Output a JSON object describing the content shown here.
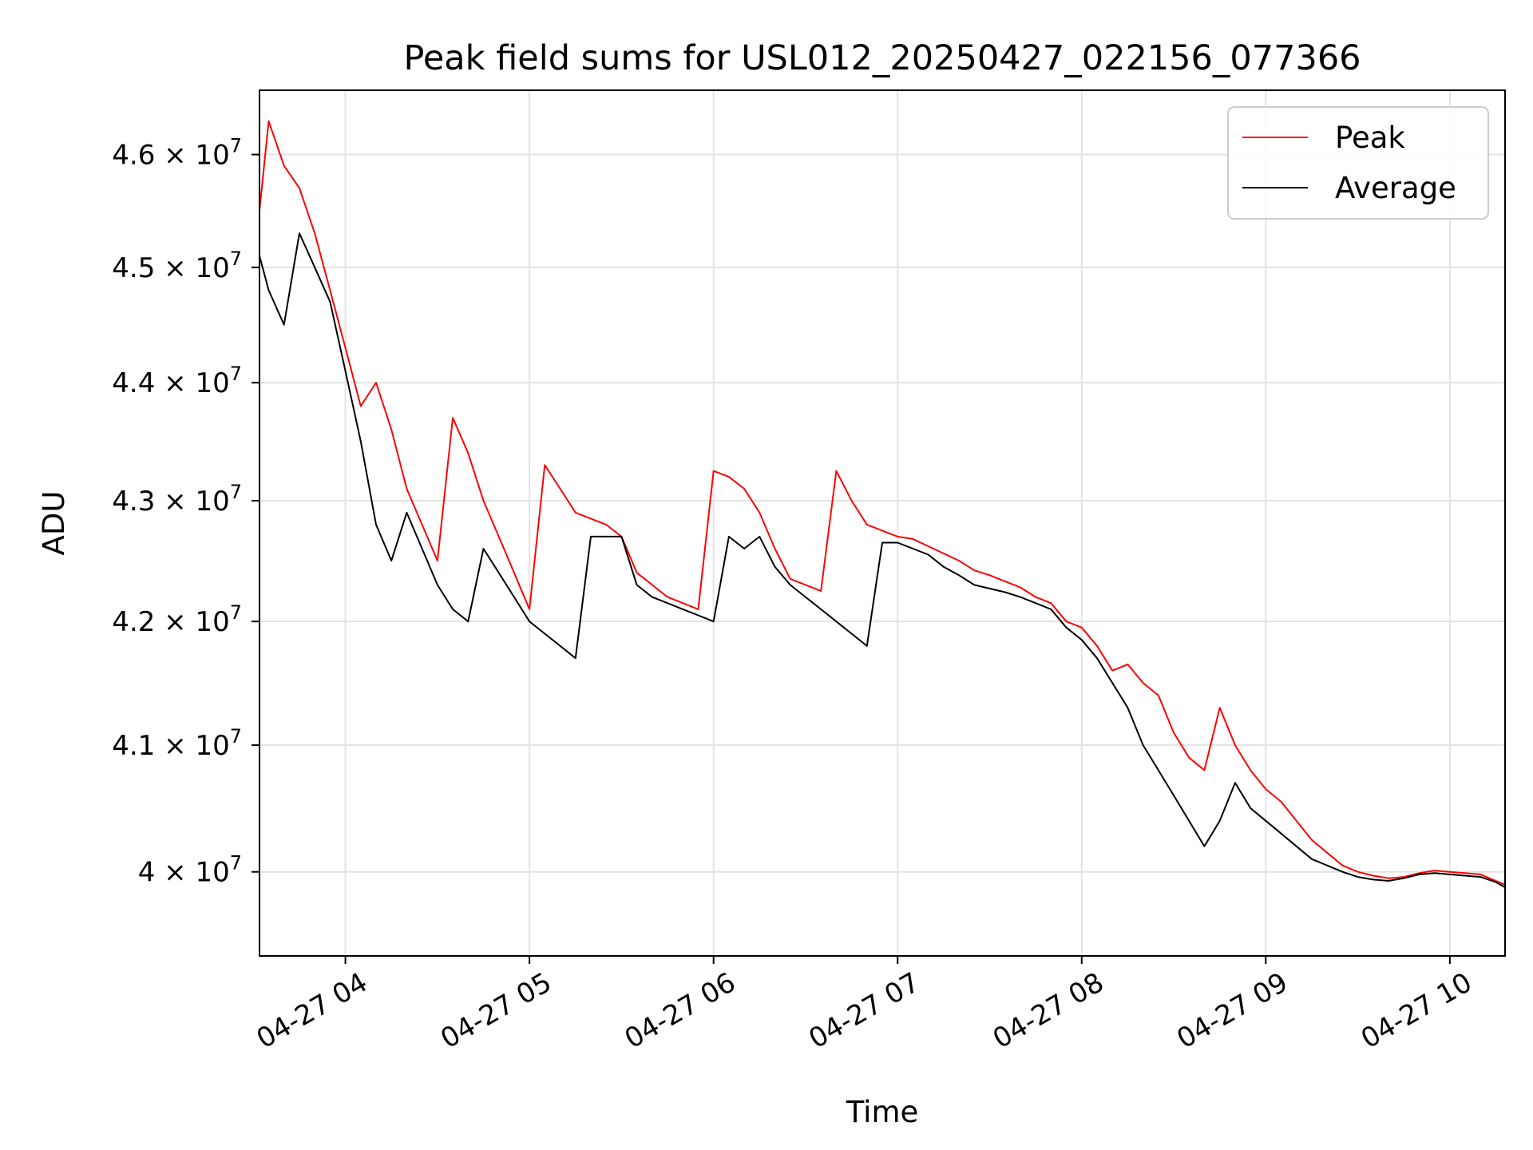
{
  "chart_data": {
    "type": "line",
    "title": "Peak field sums for USL012_20250427_022156_077366",
    "xlabel": "Time",
    "ylabel": "ADU",
    "y_scale": "log",
    "xlim": [
      "2025-04-27 03:32",
      "2025-04-27 10:18"
    ],
    "ylim": [
      39350000,
      46580000
    ],
    "grid": true,
    "legend_position": "top-right",
    "x_ticks": [
      {
        "value": "2025-04-27 04:00",
        "label": "04-27 04"
      },
      {
        "value": "2025-04-27 05:00",
        "label": "04-27 05"
      },
      {
        "value": "2025-04-27 06:00",
        "label": "04-27 06"
      },
      {
        "value": "2025-04-27 07:00",
        "label": "04-27 07"
      },
      {
        "value": "2025-04-27 08:00",
        "label": "04-27 08"
      },
      {
        "value": "2025-04-27 09:00",
        "label": "04-27 09"
      },
      {
        "value": "2025-04-27 10:00",
        "label": "04-27 10"
      }
    ],
    "y_ticks": [
      {
        "value": 40000000,
        "mantissa": "4",
        "exp": "7"
      },
      {
        "value": 41000000,
        "mantissa": "4.1",
        "exp": "7"
      },
      {
        "value": 42000000,
        "mantissa": "4.2",
        "exp": "7"
      },
      {
        "value": 43000000,
        "mantissa": "4.3",
        "exp": "7"
      },
      {
        "value": 44000000,
        "mantissa": "4.4",
        "exp": "7"
      },
      {
        "value": 45000000,
        "mantissa": "4.5",
        "exp": "7"
      },
      {
        "value": 46000000,
        "mantissa": "4.6",
        "exp": "7"
      }
    ],
    "series": [
      {
        "name": "Peak",
        "color": "#ff0000",
        "x": [
          "2025-04-27 03:32",
          "2025-04-27 03:35",
          "2025-04-27 03:40",
          "2025-04-27 03:45",
          "2025-04-27 03:50",
          "2025-04-27 03:55",
          "2025-04-27 04:00",
          "2025-04-27 04:05",
          "2025-04-27 04:10",
          "2025-04-27 04:15",
          "2025-04-27 04:20",
          "2025-04-27 04:25",
          "2025-04-27 04:30",
          "2025-04-27 04:35",
          "2025-04-27 04:40",
          "2025-04-27 04:45",
          "2025-04-27 04:50",
          "2025-04-27 04:55",
          "2025-04-27 05:00",
          "2025-04-27 05:05",
          "2025-04-27 05:10",
          "2025-04-27 05:15",
          "2025-04-27 05:20",
          "2025-04-27 05:25",
          "2025-04-27 05:30",
          "2025-04-27 05:35",
          "2025-04-27 05:40",
          "2025-04-27 05:45",
          "2025-04-27 05:50",
          "2025-04-27 05:55",
          "2025-04-27 06:00",
          "2025-04-27 06:05",
          "2025-04-27 06:10",
          "2025-04-27 06:15",
          "2025-04-27 06:20",
          "2025-04-27 06:25",
          "2025-04-27 06:30",
          "2025-04-27 06:35",
          "2025-04-27 06:40",
          "2025-04-27 06:45",
          "2025-04-27 06:50",
          "2025-04-27 06:55",
          "2025-04-27 07:00",
          "2025-04-27 07:05",
          "2025-04-27 07:10",
          "2025-04-27 07:15",
          "2025-04-27 07:20",
          "2025-04-27 07:25",
          "2025-04-27 07:30",
          "2025-04-27 07:35",
          "2025-04-27 07:40",
          "2025-04-27 07:45",
          "2025-04-27 07:50",
          "2025-04-27 07:55",
          "2025-04-27 08:00",
          "2025-04-27 08:05",
          "2025-04-27 08:10",
          "2025-04-27 08:15",
          "2025-04-27 08:20",
          "2025-04-27 08:25",
          "2025-04-27 08:30",
          "2025-04-27 08:35",
          "2025-04-27 08:40",
          "2025-04-27 08:45",
          "2025-04-27 08:50",
          "2025-04-27 08:55",
          "2025-04-27 09:00",
          "2025-04-27 09:05",
          "2025-04-27 09:10",
          "2025-04-27 09:15",
          "2025-04-27 09:20",
          "2025-04-27 09:25",
          "2025-04-27 09:30",
          "2025-04-27 09:35",
          "2025-04-27 09:40",
          "2025-04-27 09:45",
          "2025-04-27 09:50",
          "2025-04-27 09:55",
          "2025-04-27 10:00",
          "2025-04-27 10:05",
          "2025-04-27 10:10",
          "2025-04-27 10:15",
          "2025-04-27 10:18"
        ],
        "values": [
          45500000,
          46300000,
          45900000,
          45700000,
          45300000,
          44800000,
          44300000,
          43800000,
          44000000,
          43600000,
          43100000,
          42800000,
          42500000,
          43700000,
          43400000,
          43000000,
          42700000,
          42400000,
          42100000,
          43300000,
          43100000,
          42900000,
          42850000,
          42800000,
          42700000,
          42400000,
          42300000,
          42200000,
          42150000,
          42100000,
          43250000,
          43200000,
          43100000,
          42900000,
          42600000,
          42350000,
          42300000,
          42250000,
          43250000,
          43000000,
          42800000,
          42750000,
          42700000,
          42680000,
          42620000,
          42560000,
          42500000,
          42420000,
          42380000,
          42330000,
          42280000,
          42200000,
          42150000,
          42000000,
          41950000,
          41800000,
          41600000,
          41650000,
          41500000,
          41400000,
          41100000,
          40900000,
          40800000,
          41300000,
          41000000,
          40800000,
          40650000,
          40550000,
          40400000,
          40250000,
          40150000,
          40050000,
          40000000,
          39970000,
          39950000,
          39960000,
          39990000,
          40010000,
          40000000,
          39990000,
          39980000,
          39930000,
          39900000
        ]
      },
      {
        "name": "Average",
        "color": "#000000",
        "x": [
          "2025-04-27 03:32",
          "2025-04-27 03:35",
          "2025-04-27 03:40",
          "2025-04-27 03:45",
          "2025-04-27 03:50",
          "2025-04-27 03:55",
          "2025-04-27 04:00",
          "2025-04-27 04:05",
          "2025-04-27 04:10",
          "2025-04-27 04:15",
          "2025-04-27 04:20",
          "2025-04-27 04:25",
          "2025-04-27 04:30",
          "2025-04-27 04:35",
          "2025-04-27 04:40",
          "2025-04-27 04:45",
          "2025-04-27 04:50",
          "2025-04-27 04:55",
          "2025-04-27 05:00",
          "2025-04-27 05:05",
          "2025-04-27 05:10",
          "2025-04-27 05:15",
          "2025-04-27 05:20",
          "2025-04-27 05:25",
          "2025-04-27 05:30",
          "2025-04-27 05:35",
          "2025-04-27 05:40",
          "2025-04-27 05:45",
          "2025-04-27 05:50",
          "2025-04-27 05:55",
          "2025-04-27 06:00",
          "2025-04-27 06:05",
          "2025-04-27 06:10",
          "2025-04-27 06:15",
          "2025-04-27 06:20",
          "2025-04-27 06:25",
          "2025-04-27 06:30",
          "2025-04-27 06:35",
          "2025-04-27 06:40",
          "2025-04-27 06:45",
          "2025-04-27 06:50",
          "2025-04-27 06:55",
          "2025-04-27 07:00",
          "2025-04-27 07:05",
          "2025-04-27 07:10",
          "2025-04-27 07:15",
          "2025-04-27 07:20",
          "2025-04-27 07:25",
          "2025-04-27 07:30",
          "2025-04-27 07:35",
          "2025-04-27 07:40",
          "2025-04-27 07:45",
          "2025-04-27 07:50",
          "2025-04-27 07:55",
          "2025-04-27 08:00",
          "2025-04-27 08:05",
          "2025-04-27 08:10",
          "2025-04-27 08:15",
          "2025-04-27 08:20",
          "2025-04-27 08:25",
          "2025-04-27 08:30",
          "2025-04-27 08:35",
          "2025-04-27 08:40",
          "2025-04-27 08:45",
          "2025-04-27 08:50",
          "2025-04-27 08:55",
          "2025-04-27 09:00",
          "2025-04-27 09:05",
          "2025-04-27 09:10",
          "2025-04-27 09:15",
          "2025-04-27 09:20",
          "2025-04-27 09:25",
          "2025-04-27 09:30",
          "2025-04-27 09:35",
          "2025-04-27 09:40",
          "2025-04-27 09:45",
          "2025-04-27 09:50",
          "2025-04-27 09:55",
          "2025-04-27 10:00",
          "2025-04-27 10:05",
          "2025-04-27 10:10",
          "2025-04-27 10:15",
          "2025-04-27 10:18"
        ],
        "values": [
          45100000,
          44800000,
          44500000,
          45300000,
          45000000,
          44700000,
          44100000,
          43500000,
          42800000,
          42500000,
          42900000,
          42600000,
          42300000,
          42100000,
          42000000,
          42600000,
          42400000,
          42200000,
          42000000,
          41900000,
          41800000,
          41700000,
          42700000,
          42700000,
          42700000,
          42300000,
          42200000,
          42150000,
          42100000,
          42050000,
          42000000,
          42700000,
          42600000,
          42700000,
          42450000,
          42300000,
          42200000,
          42100000,
          42000000,
          41900000,
          41800000,
          42650000,
          42650000,
          42600000,
          42550000,
          42450000,
          42380000,
          42300000,
          42270000,
          42240000,
          42200000,
          42150000,
          42100000,
          41950000,
          41850000,
          41700000,
          41500000,
          41300000,
          41000000,
          40800000,
          40600000,
          40400000,
          40200000,
          40400000,
          40700000,
          40500000,
          40400000,
          40300000,
          40200000,
          40100000,
          40050000,
          40000000,
          39960000,
          39940000,
          39930000,
          39950000,
          39980000,
          39990000,
          39980000,
          39970000,
          39960000,
          39920000,
          39880000
        ]
      }
    ]
  }
}
